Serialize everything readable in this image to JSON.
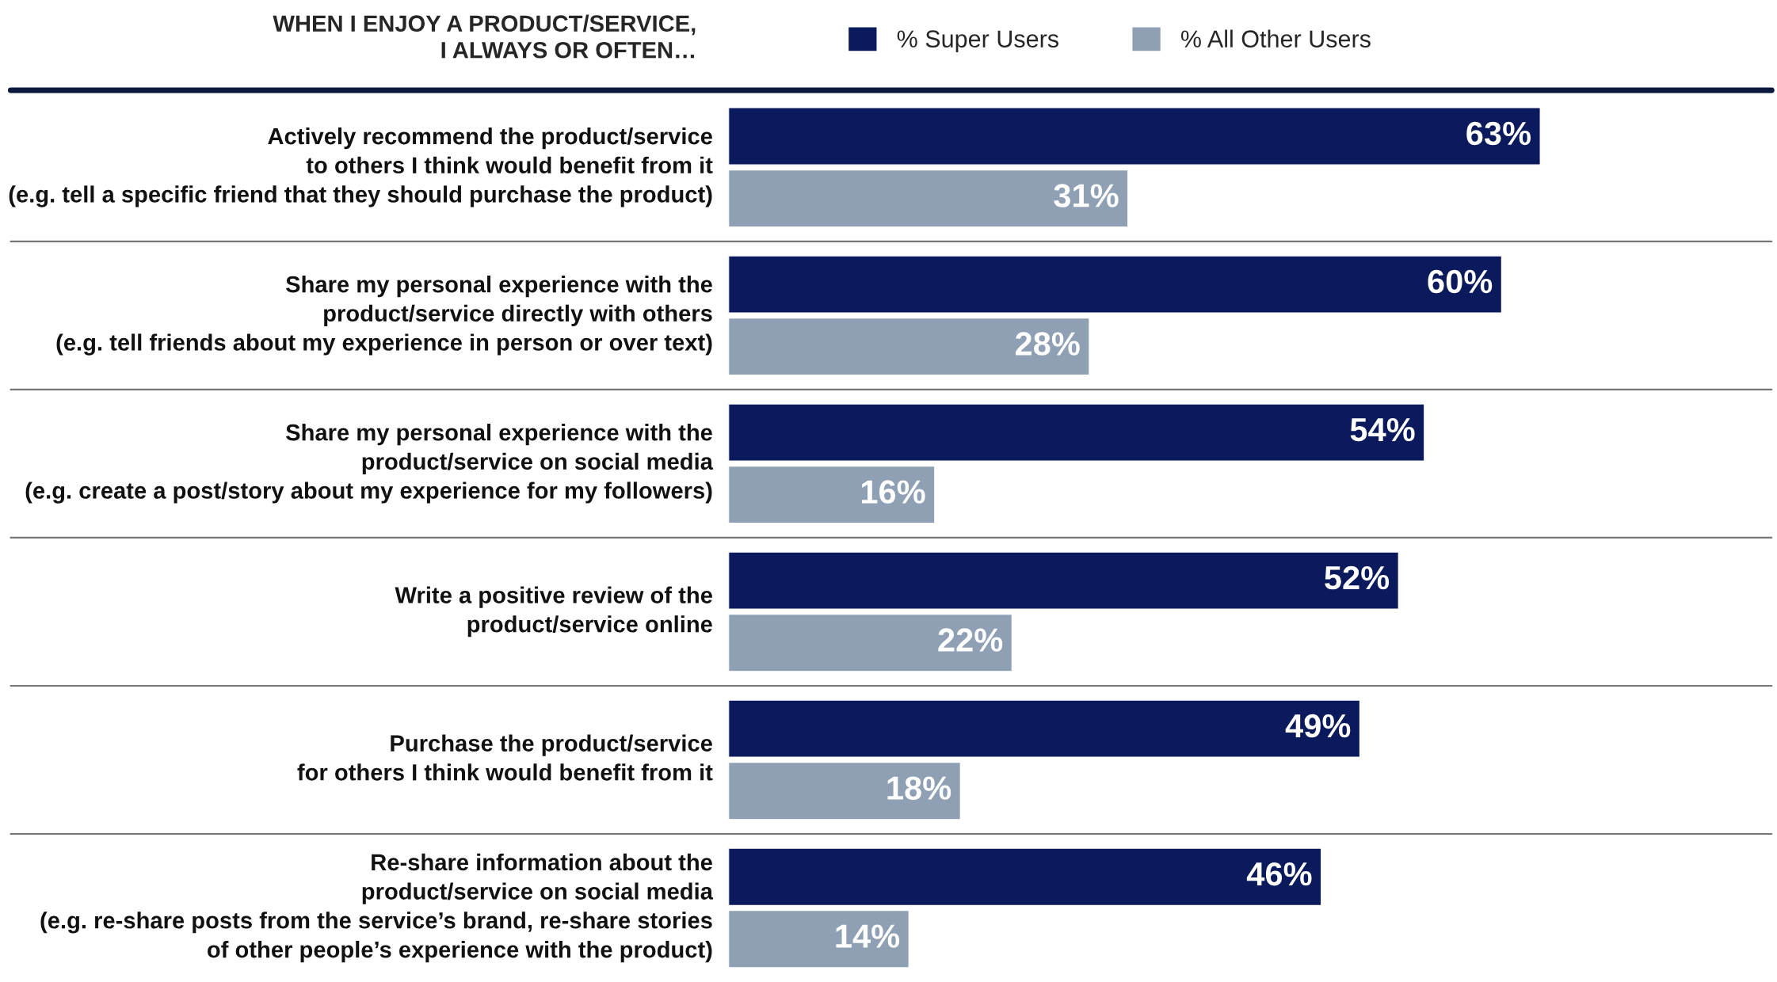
{
  "chart_data": {
    "type": "bar",
    "orientation": "horizontal",
    "title": "WHEN I ENJOY A PRODUCT/SERVICE,\nI ALWAYS OR OFTEN…",
    "categories": [
      "Actively recommend the product/service\nto others I think would benefit from it\n(e.g. tell a specific friend that they should purchase the product)",
      "Share my personal experience with the\nproduct/service directly with others\n(e.g. tell friends about my experience in person or over text)",
      "Share my personal experience with the\nproduct/service on social media\n(e.g. create a post/story about my experience for my followers)",
      "Write a positive review of the\nproduct/service online",
      "Purchase the product/service\nfor others I think would benefit from it",
      "Re-share information about the\nproduct/service on social media\n(e.g. re-share posts from the service’s brand, re-share stories\nof other people’s experience with the product)"
    ],
    "series": [
      {
        "name": "% Super Users",
        "color": "#0b1a5c",
        "values": [
          63,
          60,
          54,
          52,
          49,
          46
        ],
        "value_labels": [
          "63%",
          "60%",
          "54%",
          "52%",
          "49%",
          "46%"
        ]
      },
      {
        "name": "% All Other Users",
        "color": "#8fa0b4",
        "values": [
          31,
          28,
          16,
          22,
          18,
          14
        ],
        "value_labels": [
          "31%",
          "28%",
          "16%",
          "22%",
          "18%",
          "14%"
        ]
      }
    ],
    "legend": "top"
  }
}
